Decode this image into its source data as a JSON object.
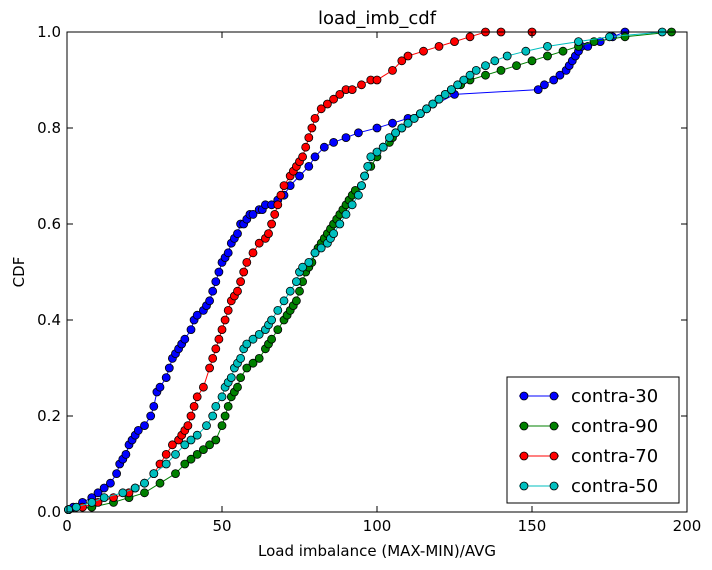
{
  "chart_data": {
    "type": "line",
    "title": "load_imb_cdf",
    "xlabel": "Load imbalance (MAX-MIN)/AVG",
    "ylabel": "CDF",
    "xlim": [
      0,
      200
    ],
    "ylim": [
      0.0,
      1.0
    ],
    "xticks": [
      "0",
      "50",
      "100",
      "150",
      "200"
    ],
    "yticks": [
      "0.0",
      "0.2",
      "0.4",
      "0.6",
      "0.8",
      "1.0"
    ],
    "grid": false,
    "legend": "bottom-right",
    "marker": "circle",
    "series": [
      {
        "name": "contra-30",
        "color": "#0000ff",
        "x": [
          0.5,
          2,
          5,
          8,
          10,
          12,
          14,
          16,
          17,
          18,
          19,
          20,
          21,
          22,
          23,
          25,
          27,
          28,
          29,
          30,
          32,
          33,
          34,
          35,
          36,
          37,
          38,
          40,
          41,
          42,
          44,
          45,
          46,
          47,
          48,
          49,
          50,
          51,
          52,
          53,
          54,
          55,
          56,
          57,
          58,
          59,
          60,
          62,
          63,
          64,
          66,
          68,
          70,
          72,
          75,
          78,
          80,
          83,
          86,
          90,
          94,
          100,
          105,
          110,
          125,
          152,
          154,
          157,
          159,
          161,
          162,
          163,
          164,
          165,
          166,
          168,
          172,
          176,
          180
        ],
        "y": [
          0.005,
          0.01,
          0.02,
          0.03,
          0.04,
          0.05,
          0.06,
          0.08,
          0.1,
          0.11,
          0.12,
          0.14,
          0.15,
          0.16,
          0.17,
          0.18,
          0.2,
          0.22,
          0.25,
          0.26,
          0.28,
          0.3,
          0.32,
          0.33,
          0.34,
          0.35,
          0.36,
          0.38,
          0.4,
          0.41,
          0.42,
          0.43,
          0.44,
          0.46,
          0.48,
          0.5,
          0.52,
          0.53,
          0.54,
          0.56,
          0.57,
          0.58,
          0.6,
          0.6,
          0.61,
          0.62,
          0.62,
          0.63,
          0.63,
          0.64,
          0.64,
          0.65,
          0.66,
          0.68,
          0.7,
          0.72,
          0.74,
          0.76,
          0.77,
          0.78,
          0.79,
          0.8,
          0.81,
          0.82,
          0.87,
          0.88,
          0.89,
          0.9,
          0.91,
          0.92,
          0.93,
          0.94,
          0.95,
          0.96,
          0.97,
          0.97,
          0.98,
          0.99,
          1.0
        ]
      },
      {
        "name": "contra-90",
        "color": "#008000",
        "x": [
          0.5,
          8,
          15,
          20,
          25,
          30,
          35,
          38,
          40,
          42,
          44,
          46,
          48,
          50,
          51,
          52,
          53,
          54,
          55,
          56,
          58,
          60,
          62,
          64,
          65,
          66,
          68,
          70,
          71,
          72,
          73,
          74,
          75,
          76,
          77,
          78,
          79,
          80,
          81,
          82,
          83,
          84,
          85,
          86,
          87,
          88,
          89,
          90,
          91,
          92,
          93,
          95,
          96,
          98,
          100,
          102,
          104,
          105,
          106,
          108,
          110,
          112,
          114,
          116,
          118,
          120,
          122,
          124,
          127,
          130,
          135,
          140,
          145,
          150,
          155,
          160,
          165,
          170,
          180,
          195
        ],
        "y": [
          0.005,
          0.01,
          0.02,
          0.03,
          0.04,
          0.06,
          0.08,
          0.1,
          0.11,
          0.12,
          0.13,
          0.14,
          0.15,
          0.18,
          0.2,
          0.22,
          0.24,
          0.25,
          0.26,
          0.28,
          0.3,
          0.31,
          0.32,
          0.34,
          0.35,
          0.36,
          0.38,
          0.4,
          0.41,
          0.42,
          0.43,
          0.44,
          0.46,
          0.48,
          0.5,
          0.51,
          0.52,
          0.54,
          0.55,
          0.56,
          0.57,
          0.58,
          0.59,
          0.6,
          0.61,
          0.62,
          0.63,
          0.64,
          0.65,
          0.66,
          0.67,
          0.68,
          0.7,
          0.72,
          0.74,
          0.76,
          0.77,
          0.78,
          0.79,
          0.8,
          0.81,
          0.82,
          0.83,
          0.84,
          0.85,
          0.86,
          0.87,
          0.88,
          0.89,
          0.9,
          0.91,
          0.92,
          0.93,
          0.94,
          0.95,
          0.96,
          0.97,
          0.98,
          0.99,
          1.0
        ]
      },
      {
        "name": "contra-70",
        "color": "#ff0000",
        "x": [
          0.5,
          5,
          10,
          15,
          20,
          22,
          25,
          28,
          30,
          32,
          34,
          36,
          37,
          38,
          39,
          40,
          41,
          42,
          44,
          46,
          47,
          48,
          49,
          50,
          51,
          52,
          53,
          54,
          55,
          56,
          57,
          58,
          60,
          62,
          64,
          65,
          66,
          67,
          68,
          69,
          70,
          72,
          73,
          74,
          75,
          76,
          77,
          78,
          79,
          80,
          82,
          84,
          86,
          88,
          90,
          92,
          95,
          98,
          100,
          105,
          108,
          110,
          115,
          120,
          125,
          130,
          135,
          140,
          150
        ],
        "y": [
          0.005,
          0.01,
          0.02,
          0.03,
          0.04,
          0.05,
          0.06,
          0.08,
          0.1,
          0.12,
          0.14,
          0.15,
          0.16,
          0.17,
          0.18,
          0.2,
          0.22,
          0.24,
          0.26,
          0.3,
          0.32,
          0.34,
          0.36,
          0.38,
          0.4,
          0.42,
          0.44,
          0.45,
          0.46,
          0.48,
          0.5,
          0.52,
          0.54,
          0.56,
          0.57,
          0.58,
          0.6,
          0.62,
          0.64,
          0.66,
          0.68,
          0.7,
          0.71,
          0.72,
          0.73,
          0.74,
          0.76,
          0.78,
          0.8,
          0.82,
          0.84,
          0.85,
          0.86,
          0.87,
          0.88,
          0.88,
          0.89,
          0.9,
          0.9,
          0.92,
          0.94,
          0.95,
          0.96,
          0.97,
          0.98,
          0.99,
          1.0,
          1.0,
          1.0
        ]
      },
      {
        "name": "contra-50",
        "color": "#00bfbf",
        "x": [
          0.5,
          3,
          8,
          12,
          18,
          22,
          25,
          28,
          32,
          35,
          38,
          40,
          42,
          45,
          47,
          48,
          50,
          51,
          52,
          53,
          54,
          55,
          56,
          57,
          58,
          60,
          62,
          64,
          65,
          66,
          68,
          70,
          72,
          74,
          75,
          76,
          78,
          80,
          82,
          84,
          85,
          86,
          88,
          90,
          92,
          94,
          95,
          96,
          97,
          98,
          100,
          102,
          104,
          106,
          108,
          110,
          112,
          114,
          116,
          118,
          120,
          122,
          124,
          126,
          128,
          130,
          132,
          135,
          138,
          142,
          148,
          155,
          165,
          175,
          192
        ],
        "y": [
          0.005,
          0.01,
          0.02,
          0.03,
          0.04,
          0.05,
          0.06,
          0.08,
          0.1,
          0.12,
          0.14,
          0.15,
          0.16,
          0.18,
          0.2,
          0.22,
          0.24,
          0.26,
          0.27,
          0.28,
          0.3,
          0.31,
          0.32,
          0.34,
          0.35,
          0.36,
          0.37,
          0.38,
          0.39,
          0.4,
          0.42,
          0.44,
          0.46,
          0.48,
          0.5,
          0.51,
          0.52,
          0.54,
          0.55,
          0.56,
          0.57,
          0.58,
          0.6,
          0.62,
          0.64,
          0.66,
          0.68,
          0.7,
          0.72,
          0.74,
          0.75,
          0.76,
          0.78,
          0.79,
          0.8,
          0.81,
          0.82,
          0.83,
          0.84,
          0.85,
          0.86,
          0.87,
          0.88,
          0.89,
          0.9,
          0.91,
          0.92,
          0.93,
          0.94,
          0.95,
          0.96,
          0.97,
          0.98,
          0.99,
          1.0
        ]
      }
    ]
  }
}
